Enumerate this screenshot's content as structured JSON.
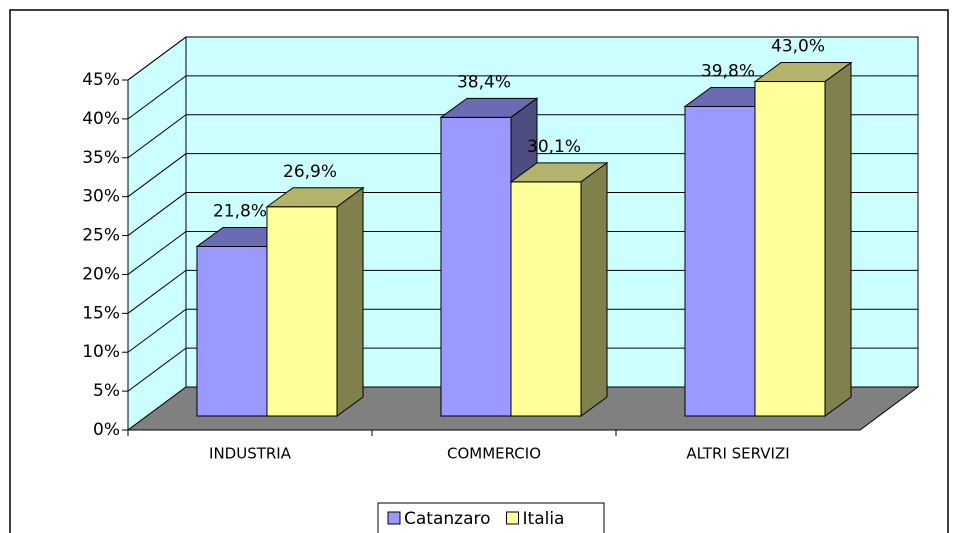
{
  "chart_data": {
    "type": "bar3d",
    "categories": [
      "INDUSTRIA",
      "COMMERCIO",
      "ALTRI SERVIZI"
    ],
    "series": [
      {
        "name": "Catanzaro",
        "color": "#9999ff",
        "values": [
          21.8,
          38.4,
          39.8
        ],
        "value_labels": [
          "21,8%",
          "38,4%",
          "39,8%"
        ]
      },
      {
        "name": "Italia",
        "color": "#ffff99",
        "values": [
          26.9,
          30.1,
          43.0
        ],
        "value_labels": [
          "26,9%",
          "30,1%",
          "43,0%"
        ]
      }
    ],
    "ylim": [
      0,
      45
    ],
    "yticks": [
      {
        "value": 0,
        "label": "0%"
      },
      {
        "value": 5,
        "label": "5%"
      },
      {
        "value": 10,
        "label": "10%"
      },
      {
        "value": 15,
        "label": "15%"
      },
      {
        "value": 20,
        "label": "20%"
      },
      {
        "value": 25,
        "label": "25%"
      },
      {
        "value": 30,
        "label": "30%"
      },
      {
        "value": 35,
        "label": "35%"
      },
      {
        "value": 40,
        "label": "40%"
      },
      {
        "value": 45,
        "label": "45%"
      }
    ],
    "grid": true,
    "legend": "bottom"
  }
}
